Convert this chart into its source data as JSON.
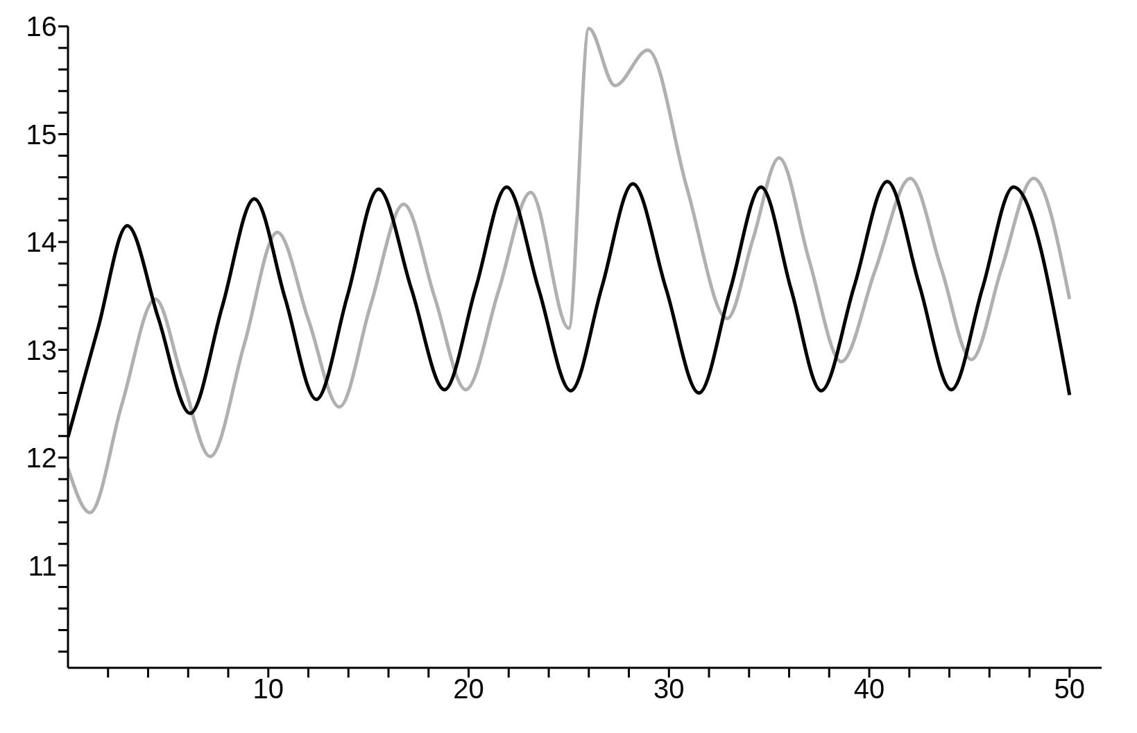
{
  "chart_data": {
    "type": "line",
    "xlim": [
      0,
      51.6
    ],
    "ylim": [
      10.05,
      16
    ],
    "xticks": [
      {
        "value": 2,
        "label": null
      },
      {
        "value": 4,
        "label": null
      },
      {
        "value": 6,
        "label": null
      },
      {
        "value": 8,
        "label": null
      },
      10,
      {
        "value": 12,
        "label": null
      },
      {
        "value": 14,
        "label": null
      },
      {
        "value": 16,
        "label": null
      },
      {
        "value": 18,
        "label": null
      },
      20,
      {
        "value": 22,
        "label": null
      },
      {
        "value": 24,
        "label": null
      },
      {
        "value": 26,
        "label": null
      },
      {
        "value": 28,
        "label": null
      },
      30,
      {
        "value": 32,
        "label": null
      },
      {
        "value": 34,
        "label": null
      },
      {
        "value": 36,
        "label": null
      },
      {
        "value": 38,
        "label": null
      },
      40,
      {
        "value": 42,
        "label": null
      },
      {
        "value": 44,
        "label": null
      },
      {
        "value": 46,
        "label": null
      },
      {
        "value": 48,
        "label": null
      },
      50
    ],
    "yticks": [
      {
        "value": 10.2,
        "label": null
      },
      {
        "value": 10.4,
        "label": null
      },
      {
        "value": 10.6,
        "label": null
      },
      {
        "value": 10.8,
        "label": null
      },
      11,
      {
        "value": 11.2,
        "label": null
      },
      {
        "value": 11.4,
        "label": null
      },
      {
        "value": 11.6,
        "label": null
      },
      {
        "value": 11.8,
        "label": null
      },
      12,
      {
        "value": 12.2,
        "label": null
      },
      {
        "value": 12.4,
        "label": null
      },
      {
        "value": 12.6,
        "label": null
      },
      {
        "value": 12.8,
        "label": null
      },
      13,
      {
        "value": 13.2,
        "label": null
      },
      {
        "value": 13.4,
        "label": null
      },
      {
        "value": 13.6,
        "label": null
      },
      {
        "value": 13.8,
        "label": null
      },
      14,
      {
        "value": 14.2,
        "label": null
      },
      {
        "value": 14.4,
        "label": null
      },
      {
        "value": 14.6,
        "label": null
      },
      {
        "value": 14.8,
        "label": null
      },
      15,
      {
        "value": 15.2,
        "label": null
      },
      {
        "value": 15.4,
        "label": null
      },
      {
        "value": 15.6,
        "label": null
      },
      {
        "value": 15.8,
        "label": null
      },
      16
    ],
    "grid": false,
    "legend": false,
    "marker": "none",
    "line_style": "solid",
    "series": [
      {
        "color": "#b0b0b0",
        "x": [
          0,
          1.1,
          2.7,
          4.36,
          5.7,
          7.1,
          8.8,
          10.45,
          12.0,
          13.55,
          15.1,
          16.76,
          18.3,
          19.86,
          21.5,
          23.1,
          25.0,
          26.0,
          27.3,
          28.95,
          30.9,
          32.9,
          34.2,
          35.5,
          37.0,
          38.6,
          40.3,
          42.05,
          43.6,
          45.1,
          46.6,
          48.2,
          50
        ],
        "values": [
          11.9,
          11.49,
          12.5,
          13.47,
          12.74,
          12.01,
          13.05,
          14.09,
          13.28,
          12.47,
          13.41,
          14.35,
          13.49,
          12.63,
          13.55,
          14.46,
          13.2,
          15.98,
          15.45,
          15.78,
          14.5,
          13.29,
          14.03,
          14.78,
          13.83,
          12.89,
          13.74,
          14.59,
          13.75,
          12.91,
          13.75,
          14.59,
          13.47
        ]
      },
      {
        "color": "#000000",
        "x": [
          0,
          1.5,
          2.96,
          4.5,
          6.1,
          7.7,
          9.3,
          10.85,
          12.4,
          13.95,
          15.5,
          17.15,
          18.8,
          20.35,
          21.9,
          23.5,
          25.1,
          26.65,
          28.2,
          29.85,
          31.5,
          33.05,
          34.6,
          36.1,
          37.6,
          39.25,
          40.9,
          42.5,
          44.1,
          45.65,
          47.2,
          50
        ],
        "values": [
          12.19,
          13.2,
          14.15,
          13.3,
          12.41,
          13.4,
          14.4,
          13.47,
          12.54,
          13.5,
          14.49,
          13.56,
          12.63,
          13.57,
          14.51,
          13.56,
          12.62,
          13.58,
          14.54,
          13.57,
          12.6,
          13.55,
          14.51,
          13.56,
          12.62,
          13.59,
          14.56,
          13.6,
          12.63,
          13.57,
          14.51,
          12.58
        ]
      }
    ]
  }
}
